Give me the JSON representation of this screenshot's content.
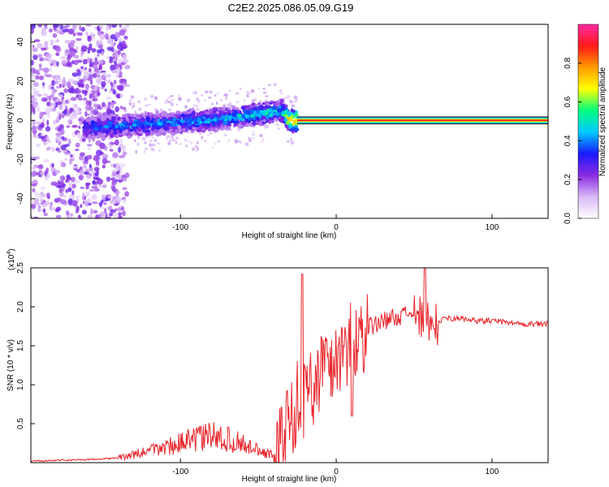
{
  "title": "C2E2.2025.086.05.09.G19",
  "colors": {
    "spectrum_cmap": [
      "#ffffff",
      "#d9b8f7",
      "#8a2be2",
      "#1a1aff",
      "#00c8ff",
      "#00ff80",
      "#ffff00",
      "#ff9a00",
      "#ff1a1a",
      "#ff2aa0"
    ],
    "snr_line": "#e8242a"
  },
  "chart_data": [
    {
      "type": "heatmap",
      "name": "spectrogram",
      "xlabel": "Height of straight line (km)",
      "ylabel": "Frequency (Hz)",
      "xlim": [
        -196,
        136
      ],
      "ylim": [
        -50,
        49
      ],
      "xticks": [
        -100,
        0,
        100
      ],
      "xtick_labels": [
        "-100",
        "0",
        "100"
      ],
      "yticks": [
        -40,
        -20,
        0,
        20,
        40
      ],
      "ytick_labels": [
        "-40",
        "-20",
        "0",
        "20",
        "40"
      ],
      "signal_track": {
        "x": [
          -162,
          -140,
          -120,
          -100,
          -80,
          -60,
          -45,
          -35,
          -30,
          -20,
          -10,
          0,
          10,
          50,
          100,
          136
        ],
        "freq": [
          -4,
          -3,
          -2,
          -1,
          0,
          2,
          4,
          5,
          0,
          0,
          0,
          0,
          0,
          0,
          0,
          0
        ],
        "amplitude": [
          0.35,
          0.4,
          0.4,
          0.42,
          0.45,
          0.45,
          0.5,
          0.5,
          0.8,
          0.85,
          0.88,
          0.9,
          0.9,
          0.9,
          0.9,
          0.9
        ]
      },
      "colorbar": {
        "label": "Normalized spectral amplitude",
        "range": [
          0,
          1
        ],
        "ticks": [
          0.0,
          0.2,
          0.4,
          0.6,
          0.8
        ],
        "tick_labels": [
          "0.0",
          "0.2",
          "0.4",
          "0.6",
          "0.8"
        ]
      }
    },
    {
      "type": "line",
      "name": "snr",
      "xlabel": "Height of straight line (km)",
      "ylabel": "SNR (10 * v/v)",
      "multiplier_label": "(x10",
      "multiplier_exp": "4",
      "multiplier_close": ")",
      "xlim": [
        -196,
        136
      ],
      "ylim": [
        0,
        2.5
      ],
      "xticks": [
        -100,
        0,
        100
      ],
      "xtick_labels": [
        "-100",
        "0",
        "100"
      ],
      "yticks": [
        0.5,
        1.0,
        1.5,
        2.0,
        2.5
      ],
      "ytick_labels": [
        "0.5",
        "1.0",
        "1.5",
        "2.0",
        "2.5"
      ],
      "series": [
        {
          "name": "SNR",
          "x": [
            -196,
            -180,
            -160,
            -150,
            -140,
            -130,
            -120,
            -110,
            -100,
            -90,
            -80,
            -70,
            -60,
            -50,
            -45,
            -40,
            -35,
            -30,
            -25,
            -20,
            -15,
            -10,
            -5,
            0,
            5,
            10,
            15,
            20,
            25,
            30,
            40,
            50,
            55,
            58,
            62,
            70,
            80,
            90,
            100,
            110,
            120,
            130,
            136
          ],
          "y": [
            0.02,
            0.03,
            0.04,
            0.05,
            0.06,
            0.1,
            0.15,
            0.2,
            0.25,
            0.3,
            0.35,
            0.3,
            0.25,
            0.15,
            0.12,
            0.1,
            0.3,
            0.55,
            0.8,
            0.85,
            1.0,
            1.2,
            1.25,
            1.3,
            1.45,
            1.55,
            1.65,
            1.72,
            1.78,
            1.82,
            1.88,
            1.9,
            1.85,
            1.8,
            1.75,
            1.85,
            1.85,
            1.82,
            1.82,
            1.8,
            1.78,
            1.78,
            1.78
          ]
        }
      ],
      "spikes": [
        {
          "x": -22,
          "y": 2.42
        },
        {
          "x": 57,
          "y": 2.5
        },
        {
          "x": 10,
          "y": 0.6
        },
        {
          "x": -50,
          "y": 0.1
        }
      ]
    }
  ]
}
